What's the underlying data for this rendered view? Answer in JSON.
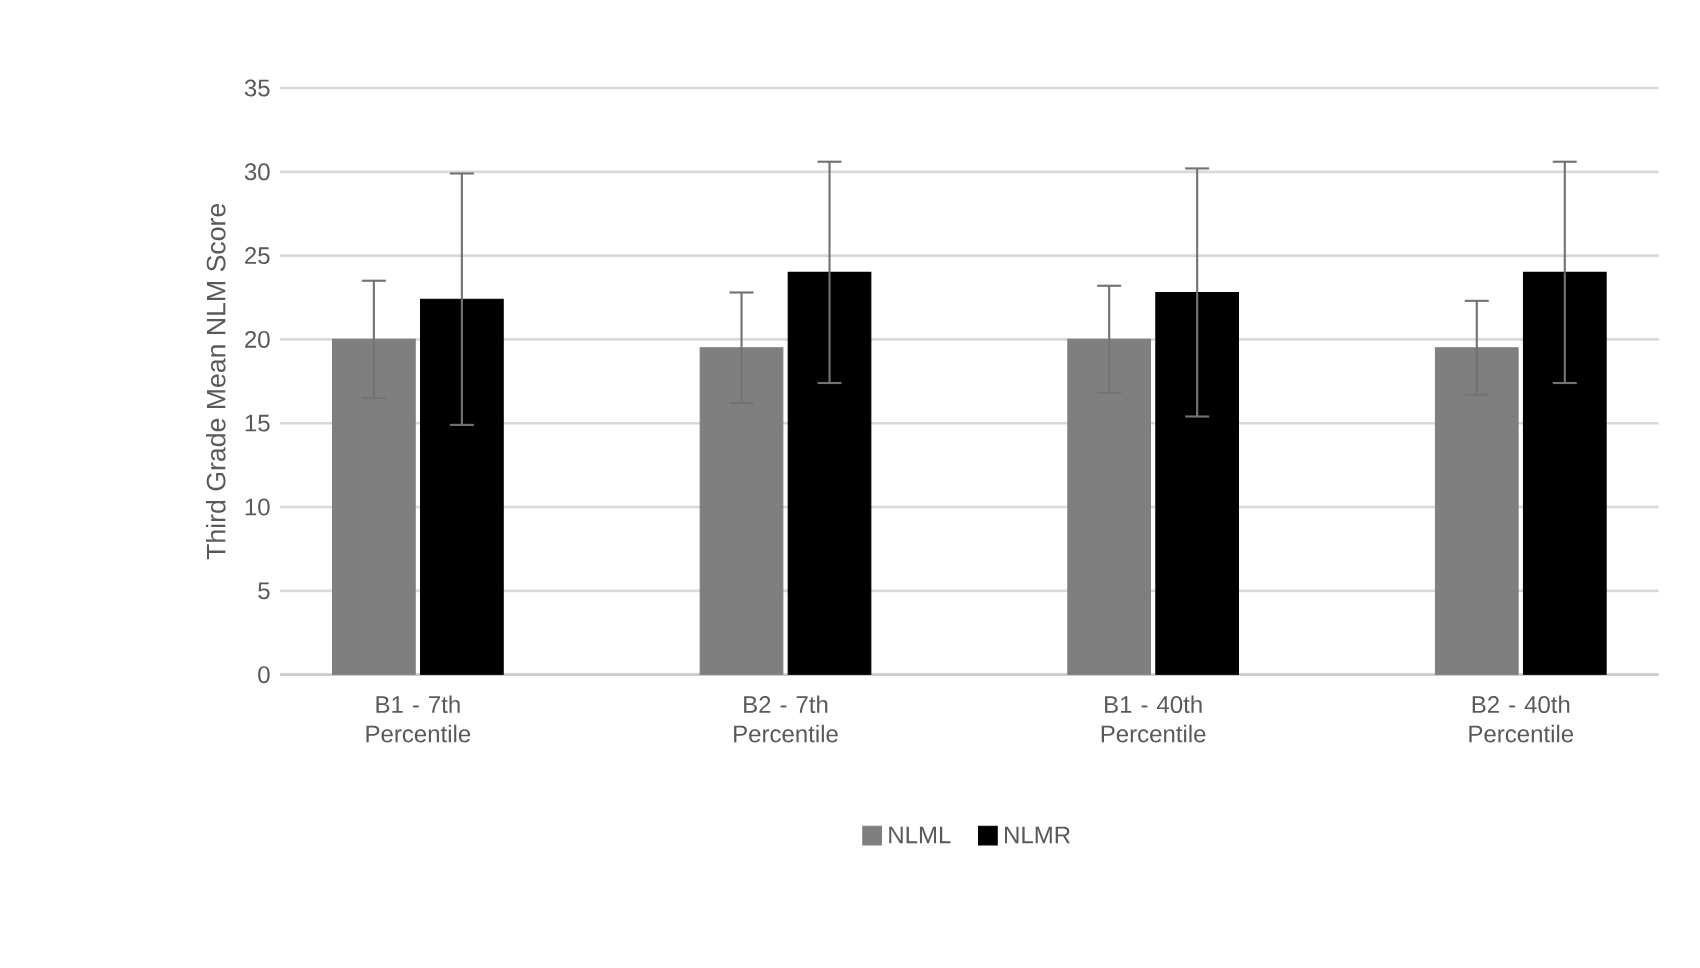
{
  "chart_data": {
    "type": "bar",
    "ylabel": "Third Grade Mean NLM Score",
    "categories": [
      "B1 - 7th Percentile",
      "B2 - 7th Percentile",
      "B1 - 40th Percentile",
      "B2 - 40th Percentile"
    ],
    "series": [
      {
        "name": "NLML",
        "color": "#7f7f7f",
        "values": [
          20.0,
          19.5,
          20.0,
          19.5
        ],
        "errors": [
          3.5,
          3.3,
          3.2,
          2.8
        ]
      },
      {
        "name": "NLMR",
        "color": "#000000",
        "values": [
          22.4,
          24.0,
          22.8,
          24.0
        ],
        "errors": [
          7.5,
          6.6,
          7.4,
          6.6
        ]
      }
    ],
    "ylim": [
      0,
      35
    ],
    "yticks": [
      0,
      5,
      10,
      15,
      20,
      25,
      30,
      35
    ],
    "grid": "y",
    "legend": "bottom"
  }
}
